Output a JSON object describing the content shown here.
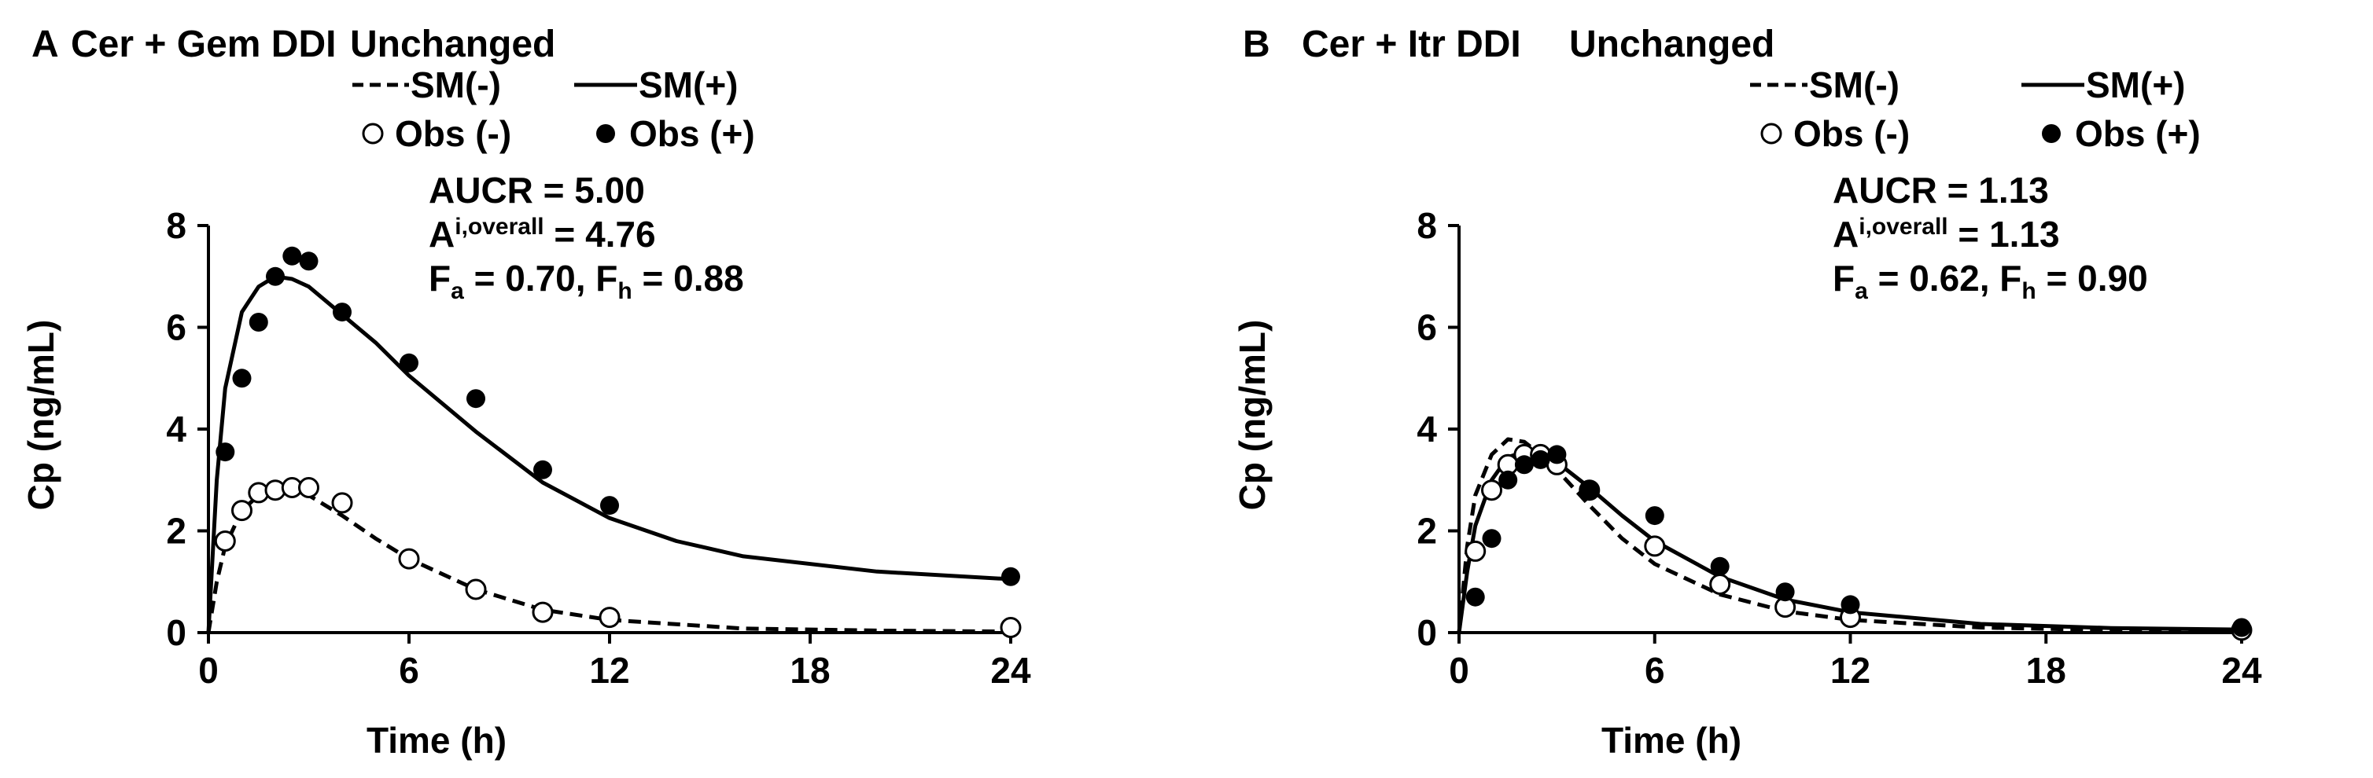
{
  "chart_data": [
    {
      "panel": "A",
      "title": "Cer + Gem DDI",
      "subtitle": "Unchanged",
      "type": "line+scatter",
      "xlabel": "Time (h)",
      "ylabel": "Cp (ng/mL)",
      "xlim": [
        0,
        24
      ],
      "ylim": [
        0,
        8
      ],
      "xticks": [
        0,
        6,
        12,
        18,
        24
      ],
      "yticks": [
        0,
        2,
        4,
        6,
        8
      ],
      "grid": false,
      "legend_position": "top-right",
      "series": [
        {
          "name": "SM(-)",
          "kind": "line",
          "style": "dashed",
          "x": [
            0,
            0.25,
            0.5,
            1,
            1.5,
            2,
            2.5,
            3,
            4,
            5,
            6,
            8,
            10,
            12,
            16,
            20,
            24
          ],
          "y": [
            0,
            1.0,
            1.7,
            2.4,
            2.7,
            2.8,
            2.8,
            2.7,
            2.3,
            1.85,
            1.45,
            0.85,
            0.45,
            0.25,
            0.08,
            0.04,
            0.02
          ]
        },
        {
          "name": "SM(+)",
          "kind": "line",
          "style": "solid",
          "x": [
            0,
            0.25,
            0.5,
            1,
            1.5,
            2,
            2.5,
            3,
            4,
            5,
            6,
            8,
            10,
            12,
            14,
            16,
            20,
            24
          ],
          "y": [
            0,
            3.0,
            4.8,
            6.3,
            6.8,
            7.0,
            6.95,
            6.8,
            6.25,
            5.7,
            5.05,
            3.95,
            2.95,
            2.25,
            1.8,
            1.5,
            1.2,
            1.05
          ]
        },
        {
          "name": "Obs (-)",
          "kind": "scatter",
          "marker": "open-circle",
          "x": [
            0.5,
            1,
            1.5,
            2,
            2.5,
            3,
            4,
            6,
            8,
            10,
            12,
            24
          ],
          "y": [
            1.8,
            2.4,
            2.75,
            2.8,
            2.85,
            2.85,
            2.55,
            1.45,
            0.85,
            0.4,
            0.3,
            0.1
          ]
        },
        {
          "name": "Obs (+)",
          "kind": "scatter",
          "marker": "filled-circle",
          "x": [
            0.5,
            1,
            1.5,
            2,
            2.5,
            3,
            4,
            6,
            8,
            10,
            12,
            24
          ],
          "y": [
            3.55,
            5.0,
            6.1,
            7.0,
            7.4,
            7.3,
            6.3,
            5.3,
            4.6,
            3.2,
            2.5,
            1.1
          ]
        }
      ],
      "annotations": {
        "line1": "AUCR = 5.00",
        "line2_main": "A",
        "line2_sub": "i,overall",
        "line2_rest": " = 4.76",
        "line3_a": "F",
        "line3_a_sub": "a",
        "line3_b": " = 0.70, F",
        "line3_b_sub": "h",
        "line3_c": " = 0.88"
      }
    },
    {
      "panel": "B",
      "title": "Cer + Itr DDI",
      "subtitle": "Unchanged",
      "type": "line+scatter",
      "xlabel": "Time (h)",
      "ylabel": "Cp (ng/mL)",
      "xlim": [
        0,
        24
      ],
      "ylim": [
        0,
        8
      ],
      "xticks": [
        0,
        6,
        12,
        18,
        24
      ],
      "yticks": [
        0,
        2,
        4,
        6,
        8
      ],
      "grid": false,
      "legend_position": "top-right",
      "series": [
        {
          "name": "SM(-)",
          "kind": "line",
          "style": "dashed",
          "x": [
            0,
            0.25,
            0.5,
            1,
            1.5,
            2,
            2.5,
            3,
            4,
            5,
            6,
            8,
            10,
            12,
            16,
            20,
            24
          ],
          "y": [
            0,
            1.7,
            2.7,
            3.5,
            3.8,
            3.75,
            3.5,
            3.2,
            2.5,
            1.85,
            1.35,
            0.75,
            0.42,
            0.25,
            0.1,
            0.05,
            0.03
          ]
        },
        {
          "name": "SM(+)",
          "kind": "line",
          "style": "solid",
          "x": [
            0,
            0.25,
            0.5,
            1,
            1.5,
            2,
            2.5,
            3,
            4,
            5,
            6,
            8,
            10,
            12,
            16,
            20,
            24
          ],
          "y": [
            0,
            1.2,
            2.1,
            3.0,
            3.45,
            3.55,
            3.5,
            3.35,
            2.85,
            2.3,
            1.8,
            1.1,
            0.65,
            0.4,
            0.17,
            0.09,
            0.06
          ]
        },
        {
          "name": "Obs (-)",
          "kind": "scatter",
          "marker": "open-circle",
          "x": [
            0.5,
            1,
            1.5,
            2,
            2.5,
            3,
            4,
            6,
            8,
            10,
            12,
            24
          ],
          "y": [
            1.6,
            2.8,
            3.3,
            3.5,
            3.5,
            3.3,
            2.8,
            1.7,
            0.95,
            0.5,
            0.3,
            0.05
          ]
        },
        {
          "name": "Obs (+)",
          "kind": "scatter",
          "marker": "filled-circle",
          "x": [
            0.5,
            1,
            1.5,
            2,
            2.5,
            3,
            4,
            6,
            8,
            10,
            12,
            24
          ],
          "y": [
            0.7,
            1.85,
            3.0,
            3.3,
            3.4,
            3.5,
            2.8,
            2.3,
            1.3,
            0.8,
            0.55,
            0.1
          ]
        }
      ],
      "annotations": {
        "line1": "AUCR = 1.13",
        "line2_main": "A",
        "line2_sub": "i,overall",
        "line2_rest": " = 1.13",
        "line3_a": "F",
        "line3_a_sub": "a",
        "line3_b": " = 0.62, F",
        "line3_b_sub": "h",
        "line3_c": " = 0.90"
      }
    }
  ]
}
